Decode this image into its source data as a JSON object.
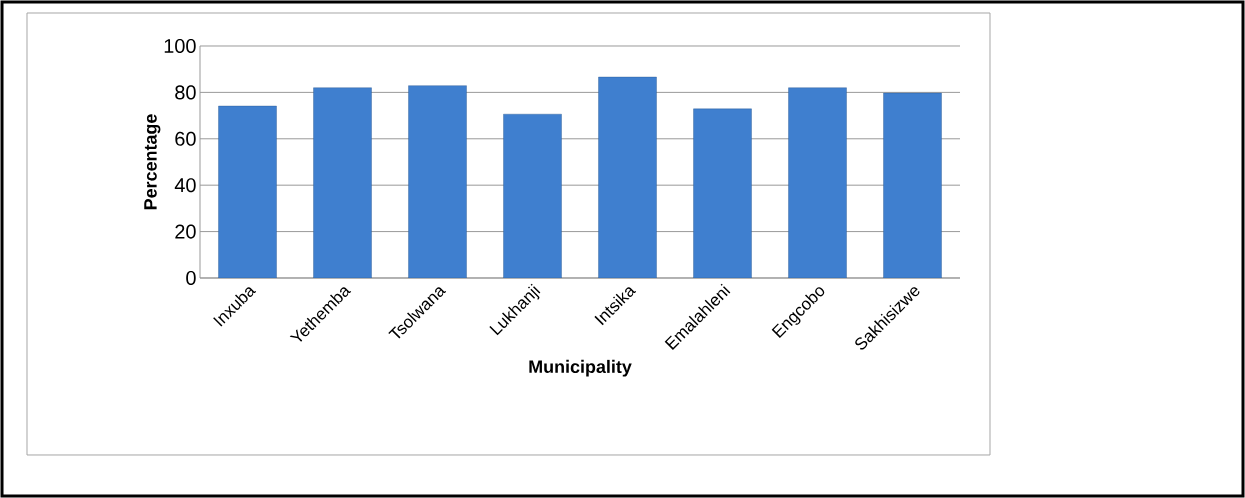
{
  "chart_data": {
    "type": "bar",
    "xlabel": "Municipality",
    "ylabel": "Percentage",
    "categories": [
      "Inxuba",
      "Yethemba",
      "Tsolwana",
      "Lukhanji",
      "Intsika",
      "Emalahleni",
      "Engcobo",
      "Sakhisizwe"
    ],
    "values": [
      74.1,
      82.0,
      82.9,
      70.6,
      86.6,
      72.9,
      82.0,
      79.7
    ],
    "color": "#3f7fcf",
    "ylim": [
      0,
      100
    ],
    "yticks": [
      0,
      20,
      40,
      60,
      80,
      100
    ],
    "grid": "y"
  }
}
